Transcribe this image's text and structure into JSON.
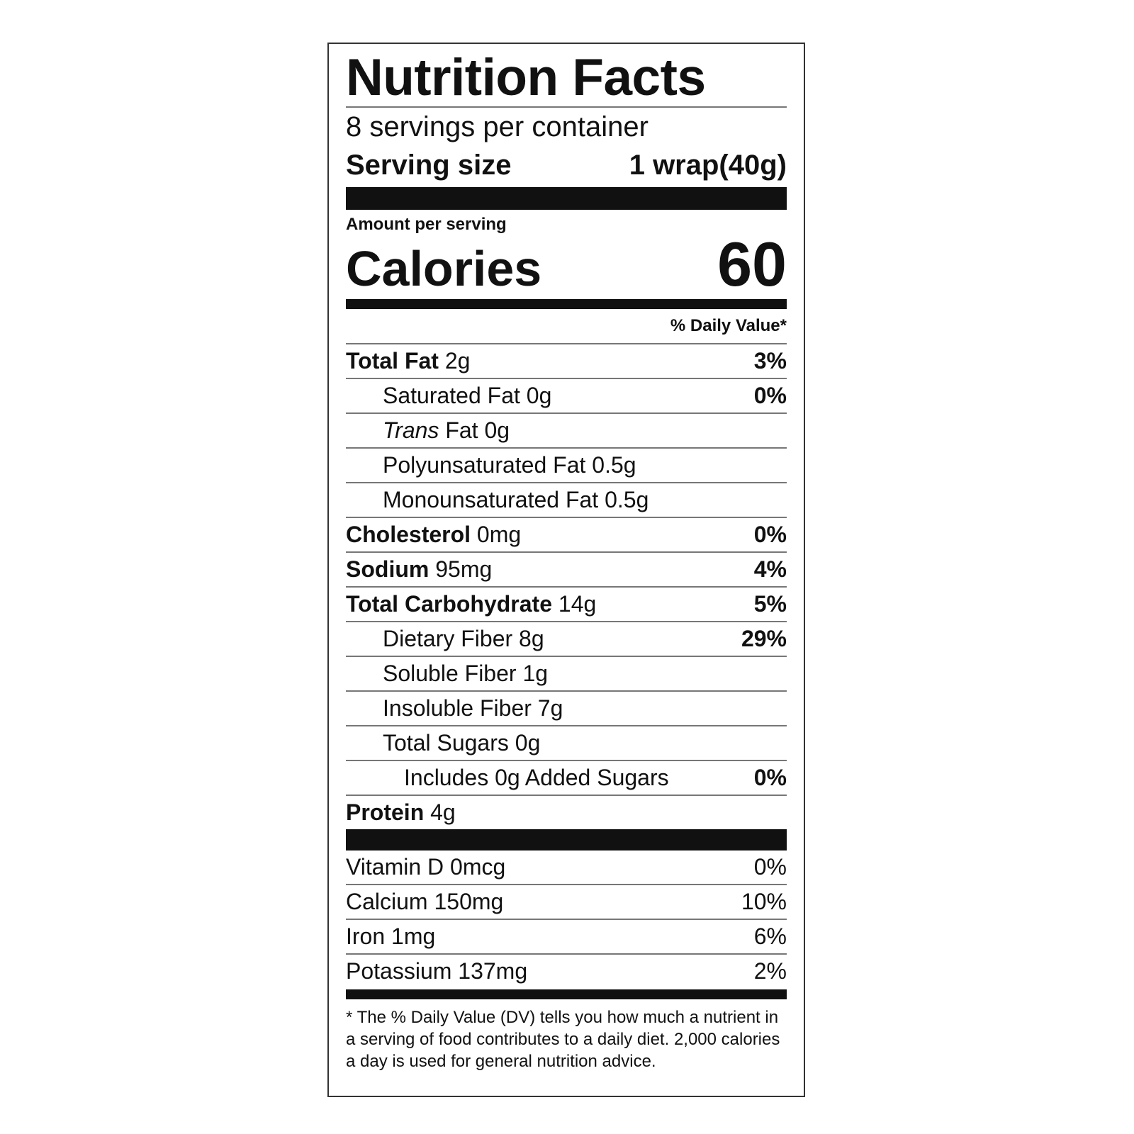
{
  "title": "Nutrition Facts",
  "servings": "8 servings per container",
  "serving_size": {
    "label": "Serving size",
    "value": "1 wrap(40g)"
  },
  "amount_per_serving": "Amount per serving",
  "calories": {
    "label": "Calories",
    "value": 60
  },
  "daily_value_header": "% Daily Value*",
  "nutrients": [
    {
      "name": "Total Fat",
      "amount": "2g",
      "dv": "3%",
      "bold": true,
      "indent": 0
    },
    {
      "name": "Saturated Fat",
      "amount": "0g",
      "dv": "0%",
      "bold": false,
      "indent": 1
    },
    {
      "name_italic": "Trans",
      "name": "Fat",
      "amount": "0g",
      "bold": false,
      "indent": 1
    },
    {
      "name": "Polyunsaturated Fat",
      "amount": "0.5g",
      "bold": false,
      "indent": 1
    },
    {
      "name": "Monounsaturated Fat",
      "amount": "0.5g",
      "bold": false,
      "indent": 1
    },
    {
      "name": "Cholesterol",
      "amount": "0mg",
      "dv": "0%",
      "bold": true,
      "indent": 0
    },
    {
      "name": "Sodium",
      "amount": "95mg",
      "dv": "4%",
      "bold": true,
      "indent": 0
    },
    {
      "name": "Total Carbohydrate",
      "amount": "14g",
      "dv": "5%",
      "bold": true,
      "indent": 0
    },
    {
      "name": "Dietary Fiber",
      "amount": "8g",
      "dv": "29%",
      "bold": false,
      "indent": 1
    },
    {
      "name": "Soluble Fiber",
      "amount": "1g",
      "bold": false,
      "indent": 1
    },
    {
      "name": "Insoluble Fiber",
      "amount": "7g",
      "bold": false,
      "indent": 1
    },
    {
      "name": "Total Sugars",
      "amount": "0g",
      "bold": false,
      "indent": 1
    },
    {
      "name": "Includes 0g Added Sugars",
      "dv": "0%",
      "bold": false,
      "indent": 2
    },
    {
      "name": "Protein",
      "amount": "4g",
      "bold": true,
      "indent": 0
    }
  ],
  "vitamins": [
    {
      "name": "Vitamin D",
      "amount": "0mcg",
      "dv": "0%"
    },
    {
      "name": "Calcium",
      "amount": "150mg",
      "dv": "10%"
    },
    {
      "name": "Iron",
      "amount": "1mg",
      "dv": "6%"
    },
    {
      "name": "Potassium",
      "amount": "137mg",
      "dv": "2%"
    }
  ],
  "footnote": "* The % Daily Value (DV) tells you how much a nutrient in a serving of food contributes to a daily diet. 2,000 calories a day is used for general nutrition advice."
}
